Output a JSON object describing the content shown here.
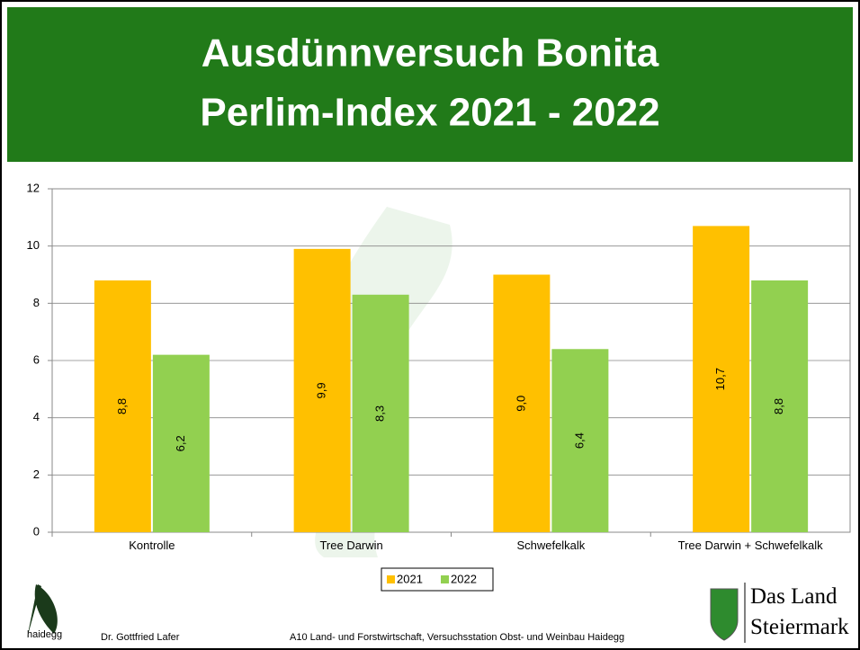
{
  "chart_data": {
    "type": "bar",
    "title": "Ausdünnversuch Bonita",
    "subtitle": "Perlim-Index 2021 - 2022",
    "categories": [
      "Kontrolle",
      "Tree Darwin",
      "Schwefelkalk",
      "Tree Darwin + Schwefelkalk"
    ],
    "series": [
      {
        "name": "2021",
        "color": "#ffc000",
        "values": [
          8.8,
          9.9,
          9.0,
          10.7
        ],
        "value_labels": [
          "8,8",
          "9,9",
          "9,0",
          "10,7"
        ]
      },
      {
        "name": "2022",
        "color": "#92d050",
        "values": [
          6.2,
          8.3,
          6.4,
          8.8
        ],
        "value_labels": [
          "6,2",
          "8,3",
          "6,4",
          "8,8"
        ]
      }
    ],
    "ylim": [
      0,
      12
    ],
    "yticks": [
      0,
      2,
      4,
      6,
      8,
      10,
      12
    ],
    "grid": true,
    "legend": "bottom"
  },
  "footer": {
    "logo_text": "haidegg",
    "author": "Dr. Gottfried Lafer",
    "institution": "A10 Land- und Forstwirtschaft, Versuchsstation Obst- und Weinbau Haidegg",
    "brand_line1": "Das Land",
    "brand_line2": "Steiermark"
  }
}
